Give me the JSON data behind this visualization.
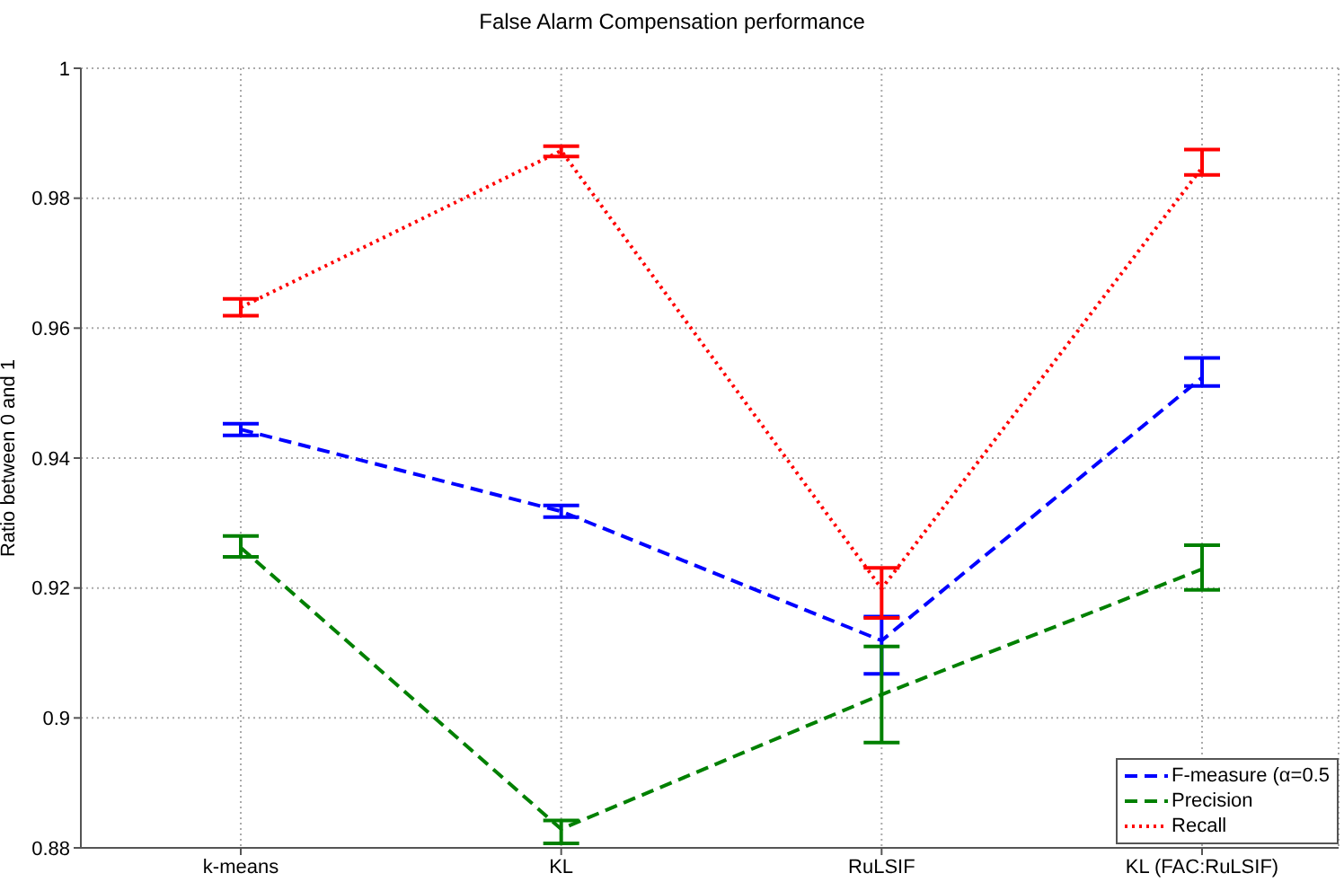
{
  "chart_data": {
    "type": "line",
    "title": "False Alarm Compensation performance",
    "ylabel": "Ratio between 0 and 1",
    "categories": [
      "k-means",
      "KL",
      "RuLSIF",
      "KL (FAC:RuLSIF)"
    ],
    "series": [
      {
        "name": "F-measure (α=0.5",
        "color": "#0000ff",
        "line_style": "dashed",
        "values": [
          0.9444,
          0.9318,
          0.9119,
          0.9524
        ],
        "errors": [
          [
            0.9435,
            0.9453
          ],
          [
            0.9309,
            0.9327
          ],
          [
            0.9068,
            0.9156
          ],
          [
            0.9511,
            0.9554
          ]
        ]
      },
      {
        "name": "Precision",
        "color": "#008000",
        "line_style": "dashed",
        "values": [
          0.9262,
          0.8829,
          0.9036,
          0.9229
        ],
        "errors": [
          [
            0.9248,
            0.928
          ],
          [
            0.8807,
            0.8842
          ],
          [
            0.8962,
            0.911
          ],
          [
            0.9197,
            0.9266
          ]
        ]
      },
      {
        "name": "Recall",
        "color": "#ff0000",
        "line_style": "dotted",
        "values": [
          0.9632,
          0.9873,
          0.9199,
          0.9847
        ],
        "errors": [
          [
            0.9619,
            0.9645
          ],
          [
            0.9864,
            0.988
          ],
          [
            0.9154,
            0.9231
          ],
          [
            0.9836,
            0.9875
          ]
        ]
      }
    ],
    "ylim": [
      0.88,
      1
    ],
    "yticks": [
      0.88,
      0.9,
      0.92,
      0.94,
      0.96,
      0.98,
      1
    ],
    "grid": true,
    "legend": "bottom right",
    "marker": "none"
  }
}
